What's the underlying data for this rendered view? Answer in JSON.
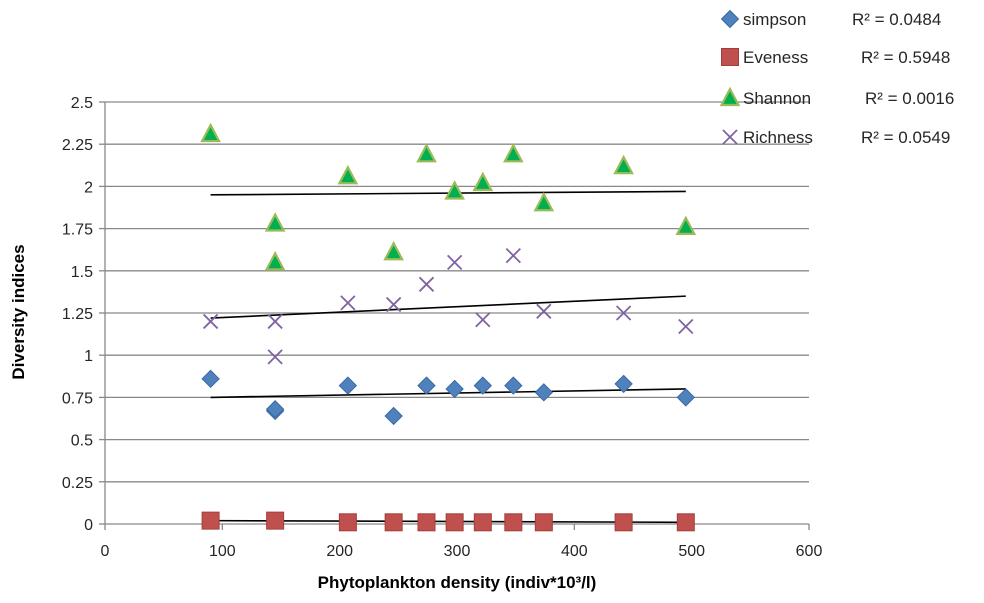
{
  "chart_data": {
    "type": "scatter",
    "title": "",
    "xlabel": "Phytoplankton density (indiv*10³/l)",
    "ylabel": "Diversity indices",
    "xlim": [
      0,
      600
    ],
    "ylim": [
      0,
      2.5
    ],
    "x_ticks": [
      "0",
      "100",
      "200",
      "300",
      "400",
      "500",
      "600"
    ],
    "y_ticks": [
      "0",
      "0.25",
      "0.5",
      "0.75",
      "1",
      "1.25",
      "1.5",
      "1.75",
      "2",
      "2.25",
      "2.5"
    ],
    "grid": "horizontal",
    "legend_position": "top-right",
    "series": [
      {
        "name": "simpson",
        "marker": "diamond",
        "color": "#4f81bd",
        "r2": "R² = 0.0484",
        "trendline": [
          [
            90,
            0.75
          ],
          [
            495,
            0.8
          ]
        ],
        "points": [
          [
            90,
            0.86
          ],
          [
            145,
            0.67
          ],
          [
            145,
            0.68
          ],
          [
            207,
            0.82
          ],
          [
            246,
            0.64
          ],
          [
            274,
            0.82
          ],
          [
            298,
            0.8
          ],
          [
            322,
            0.82
          ],
          [
            348,
            0.82
          ],
          [
            374,
            0.78
          ],
          [
            442,
            0.83
          ],
          [
            495,
            0.75
          ]
        ]
      },
      {
        "name": "Eveness",
        "marker": "square",
        "color": "#c0504d",
        "r2": "R² = 0.5948",
        "trendline": [
          [
            90,
            0.02
          ],
          [
            495,
            0.01
          ]
        ],
        "points": [
          [
            90,
            0.02
          ],
          [
            145,
            0.02
          ],
          [
            207,
            0.01
          ],
          [
            246,
            0.01
          ],
          [
            274,
            0.01
          ],
          [
            298,
            0.01
          ],
          [
            322,
            0.01
          ],
          [
            348,
            0.01
          ],
          [
            374,
            0.01
          ],
          [
            442,
            0.01
          ],
          [
            495,
            0.01
          ]
        ]
      },
      {
        "name": "Shannon",
        "marker": "triangle",
        "color": "#00b050",
        "r2": "R² = 0.0016",
        "trendline": [
          [
            90,
            1.95
          ],
          [
            495,
            1.97
          ]
        ],
        "points": [
          [
            90,
            2.31
          ],
          [
            145,
            1.78
          ],
          [
            145,
            1.55
          ],
          [
            207,
            2.06
          ],
          [
            246,
            1.61
          ],
          [
            274,
            2.19
          ],
          [
            298,
            1.97
          ],
          [
            322,
            2.02
          ],
          [
            348,
            2.19
          ],
          [
            374,
            1.9
          ],
          [
            442,
            2.12
          ],
          [
            495,
            1.76
          ]
        ]
      },
      {
        "name": "Richness",
        "marker": "x",
        "color": "#8064a2",
        "r2": "R² = 0.0549",
        "trendline": [
          [
            90,
            1.22
          ],
          [
            495,
            1.35
          ]
        ],
        "points": [
          [
            90,
            1.2
          ],
          [
            145,
            1.2
          ],
          [
            145,
            0.99
          ],
          [
            207,
            1.31
          ],
          [
            246,
            1.3
          ],
          [
            274,
            1.42
          ],
          [
            298,
            1.55
          ],
          [
            322,
            1.21
          ],
          [
            348,
            1.59
          ],
          [
            374,
            1.26
          ],
          [
            442,
            1.25
          ],
          [
            495,
            1.17
          ]
        ]
      }
    ]
  }
}
